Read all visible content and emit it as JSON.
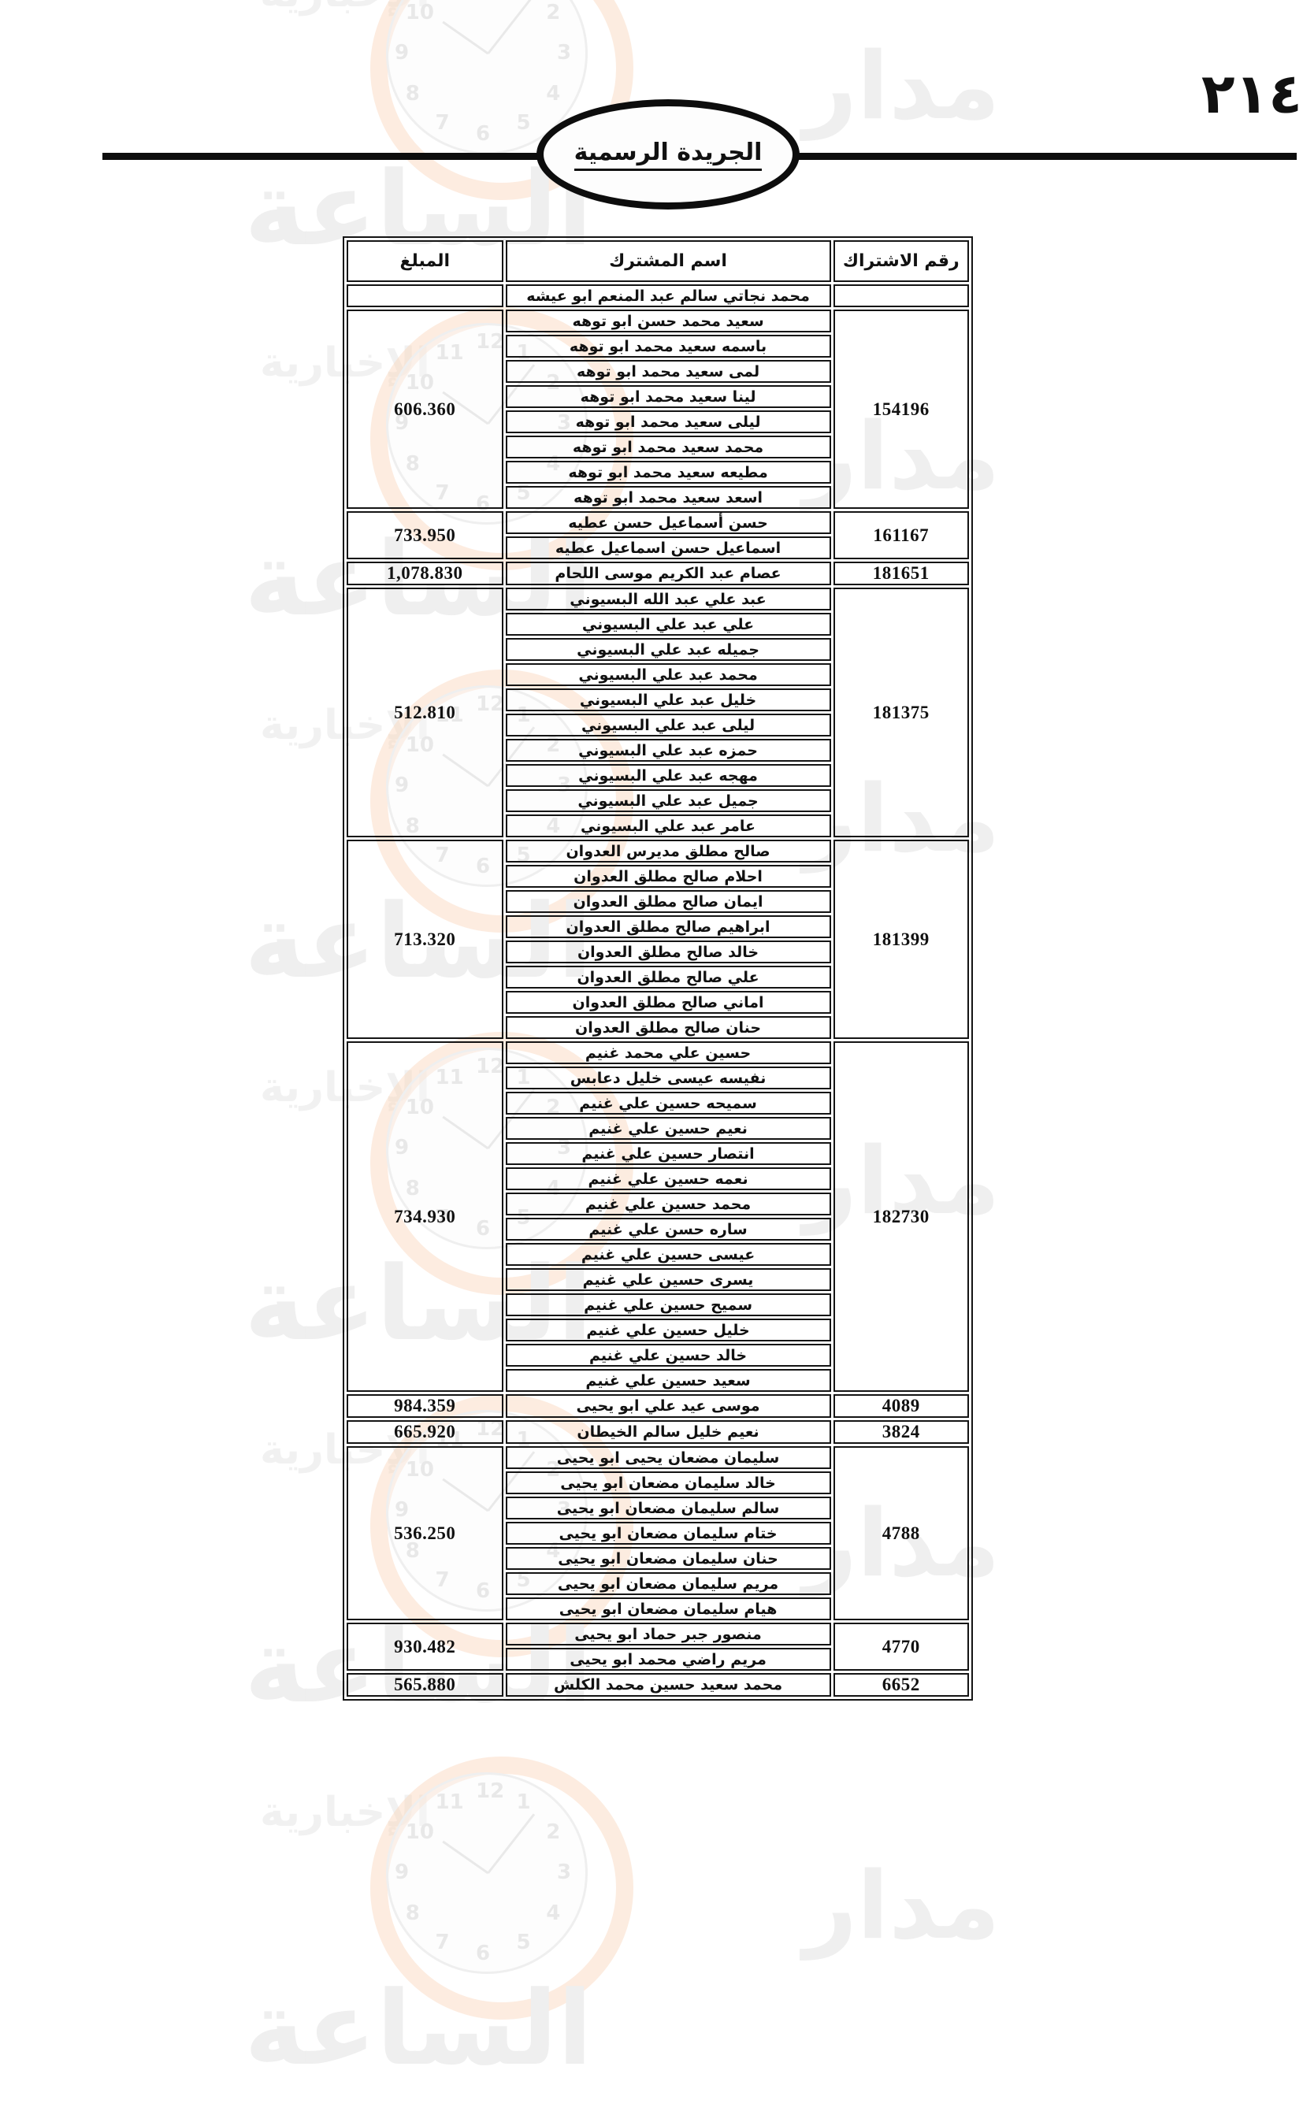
{
  "page": {
    "number_arabic": "٢١٤",
    "banner": "الجريدة الرسمية"
  },
  "table": {
    "headers": {
      "number": "رقم الاشتراك",
      "name": "اسم المشترك",
      "amount": "المبلغ"
    },
    "orphan_row": {
      "name": "محمد نجاتي سالم عبد المنعم ابو عيشه",
      "number": "",
      "amount": ""
    },
    "groups": [
      {
        "number": "154196",
        "amount": "606.360",
        "names": [
          "سعيد محمد حسن ابو توهه",
          "باسمه سعيد محمد ابو توهه",
          "لمى سعيد محمد ابو توهه",
          "لينا سعيد محمد ابو توهه",
          "ليلى سعيد محمد ابو توهه",
          "محمد سعيد محمد ابو توهه",
          "مطيعه سعيد محمد ابو توهه",
          "اسعد سعيد محمد ابو توهه"
        ]
      },
      {
        "number": "161167",
        "amount": "733.950",
        "names": [
          "حسن أسماعيل حسن عطيه",
          "اسماعيل حسن اسماعيل عطيه"
        ]
      },
      {
        "number": "181651",
        "amount": "1,078.830",
        "names": [
          "عصام عبد الكريم موسى اللحام"
        ]
      },
      {
        "number": "181375",
        "amount": "512.810",
        "names": [
          "عبد علي عبد الله البسيوني",
          "علي عبد علي البسيوني",
          "جميله عبد علي البسيوني",
          "محمد عبد علي البسيوني",
          "خليل عبد علي البسيوني",
          "ليلى عبد علي البسيوني",
          "حمزه عبد علي البسيوني",
          "مهجه عبد علي البسيوني",
          "جميل عبد علي البسيوني",
          "عامر عبد علي البسيوني"
        ]
      },
      {
        "number": "181399",
        "amount": "713.320",
        "names": [
          "صالح مطلق مديرس العدوان",
          "احلام صالح مطلق العدوان",
          "ايمان صالح مطلق العدوان",
          "ابراهيم صالح مطلق العدوان",
          "خالد صالح مطلق العدوان",
          "علي صالح مطلق العدوان",
          "اماني صالح مطلق العدوان",
          "حنان صالح مطلق العدوان"
        ]
      },
      {
        "number": "182730",
        "amount": "734.930",
        "names": [
          "حسين علي محمد غنيم",
          "نفيسه عيسى خليل دعابس",
          "سميحه حسين علي غنيم",
          "نعيم حسين علي غنيم",
          "انتصار حسين علي غنيم",
          "نعمه حسين علي غنيم",
          "محمد حسين علي غنيم",
          "ساره حسن علي غنيم",
          "عيسى حسين علي غنيم",
          "يسرى حسين علي غنيم",
          "سميح حسين علي غنيم",
          "خليل حسين علي غنيم",
          "خالد حسين علي غنيم",
          "سعيد حسين علي غنيم"
        ]
      },
      {
        "number": "4089",
        "amount": "984.359",
        "names": [
          "موسى عيد علي ابو يحيى"
        ]
      },
      {
        "number": "3824",
        "amount": "665.920",
        "names": [
          "نعيم خليل سالم الخيطان"
        ]
      },
      {
        "number": "4788",
        "amount": "536.250",
        "names": [
          "سليمان مضعان يحيى ابو يحيى",
          "خالد سليمان مضعان ابو يحيى",
          "سالم سليمان مضعان ابو يحيى",
          "ختام سليمان مضعان ابو يحيى",
          "حنان سليمان مضعان ابو يحيى",
          "مريم سليمان مضعان ابو يحيى",
          "هيام سليمان مضعان ابو يحيى"
        ]
      },
      {
        "number": "4770",
        "amount": "930.482",
        "names": [
          "منصور جبر حماد ابو يحيى",
          "مريم راضي محمد ابو يحيى"
        ]
      },
      {
        "number": "6652",
        "amount": "565.880",
        "names": [
          "محمد سعيد حسين محمد الكلش"
        ]
      }
    ]
  },
  "watermark": {
    "brand_word_1": "مدار",
    "brand_word_2": "الساعة",
    "brand_word_3": "الإخبارية",
    "clock_numerals": [
      "12",
      "1",
      "2",
      "3",
      "4",
      "5",
      "6",
      "7",
      "8",
      "9",
      "10",
      "11"
    ],
    "ring_color": "#f5b98e",
    "text_color": "#e6e6e6"
  }
}
